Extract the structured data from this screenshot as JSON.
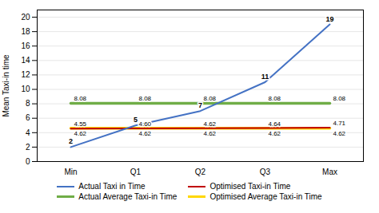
{
  "chart_data": {
    "type": "line",
    "categories": [
      "Min",
      "Q1",
      "Q2",
      "Q3",
      "Max"
    ],
    "series": [
      {
        "name": "Actual Taxi in Time",
        "color": "#4472C4",
        "values": [
          2,
          5,
          7,
          11,
          19
        ]
      },
      {
        "name": "Optimised Taxi-in Time",
        "color": "#C00000",
        "values": [
          4.55,
          4.6,
          4.62,
          4.64,
          4.71
        ],
        "value_labels": [
          "4.55",
          "4.60",
          "4.62",
          "4.64",
          "4.71"
        ]
      },
      {
        "name": "Actual Average Taxi-in Time",
        "color": "#70AD47",
        "values": [
          8.08,
          8.08,
          8.08,
          8.08,
          8.08
        ]
      },
      {
        "name": "Optimised Average Taxi-in Time",
        "color": "#FFD700",
        "values": [
          4.62,
          4.62,
          4.62,
          4.62,
          4.62
        ]
      }
    ],
    "ylabel": "Mean Taxi-in time",
    "ylim": [
      0,
      21
    ],
    "yticks": [
      0,
      2,
      4,
      6,
      8,
      10,
      12,
      14,
      16,
      18,
      20
    ],
    "grid": true,
    "data_labels": true,
    "legend": "bottom"
  }
}
